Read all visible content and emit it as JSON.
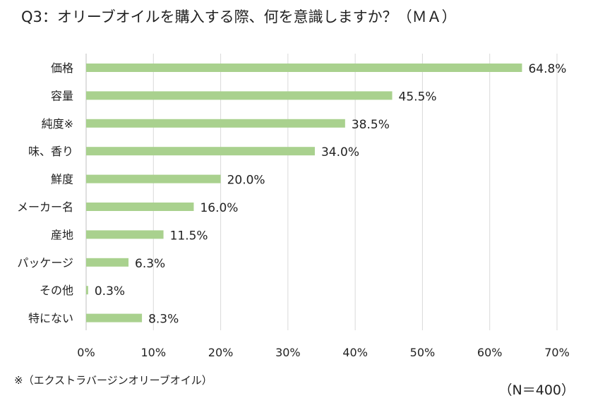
{
  "title": "Q3：オリーブオイルを購入する際、何を意識しますか？（ＭＡ）",
  "footnote": "※（エクストラバージンオリーブオイル）",
  "sample_size": "（N＝400）",
  "colors": {
    "bar": "#a9d18e",
    "grid": "#d9d9d9",
    "axis": "#bfbfbf"
  },
  "chart_data": {
    "type": "bar",
    "orientation": "horizontal",
    "title": "Q3：オリーブオイルを購入する際、何を意識しますか？（ＭＡ）",
    "categories": [
      "価格",
      "容量",
      "純度※",
      "味、香り",
      "鮮度",
      "メーカー名",
      "産地",
      "パッケージ",
      "その他",
      "特にない"
    ],
    "values": [
      64.8,
      45.5,
      38.5,
      34.0,
      20.0,
      16.0,
      11.5,
      6.3,
      0.3,
      8.3
    ],
    "value_labels": [
      "64.8%",
      "45.5%",
      "38.5%",
      "34.0%",
      "20.0%",
      "16.0%",
      "11.5%",
      "6.3%",
      "0.3%",
      "8.3%"
    ],
    "xlim": [
      0,
      70
    ],
    "x_ticks": [
      0,
      10,
      20,
      30,
      40,
      50,
      60,
      70
    ],
    "x_tick_labels": [
      "0%",
      "10%",
      "20%",
      "30%",
      "40%",
      "50%",
      "60%",
      "70%"
    ],
    "grid": true,
    "legend": false
  }
}
